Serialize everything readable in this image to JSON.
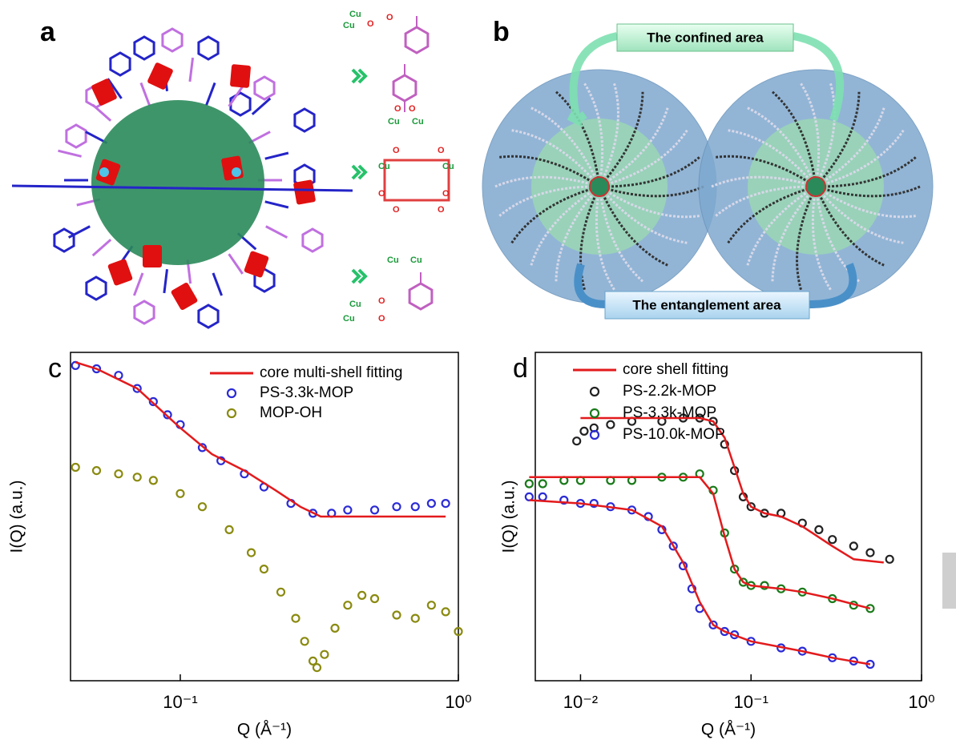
{
  "panels": {
    "a": {
      "label": "a",
      "chem_labels": [
        "Cu",
        "Cu",
        "O",
        "O",
        "O",
        "O",
        "Cu",
        "Cu",
        "O",
        "O",
        "Cu",
        "Cu",
        "O",
        "O",
        "O",
        "O",
        "Cu",
        "Cu",
        "Cu",
        "Cu",
        "O",
        "O"
      ]
    },
    "b": {
      "label": "b",
      "confined": "The confined area",
      "entanglement": "The entanglement area"
    }
  },
  "chart_data": [
    {
      "type": "scatter",
      "label": "c",
      "x_label": "Q (Å⁻¹)",
      "y_label": "I(Q) (a.u.)",
      "log_x": true,
      "xlim": [
        0.0403,
        1.0
      ],
      "ylim": [
        0,
        100
      ],
      "xticks": [
        {
          "value": 0.1,
          "label": "10⁻¹"
        },
        {
          "value": 1,
          "label": "10⁰"
        }
      ],
      "legend": "upper right",
      "fit": {
        "name": "core multi-shell fitting",
        "color": "#e31a1c",
        "lines": [
          {
            "x": [
              0.042,
              0.05,
              0.07,
              0.1,
              0.13,
              0.17,
              0.22,
              0.27,
              0.32,
              0.4,
              0.6,
              0.9
            ],
            "values": [
              97,
              95,
              89,
              77,
              69,
              64,
              58,
              53,
              50,
              50,
              50,
              50
            ]
          }
        ]
      },
      "series": [
        {
          "name": "PS-3.3k-MOP",
          "color": "#2b2bd6",
          "x": [
            0.042,
            0.05,
            0.06,
            0.07,
            0.08,
            0.09,
            0.1,
            0.12,
            0.14,
            0.17,
            0.2,
            0.25,
            0.3,
            0.35,
            0.4,
            0.5,
            0.6,
            0.7,
            0.8,
            0.9
          ],
          "values": [
            96,
            95,
            93,
            89,
            85,
            81,
            78,
            71,
            67,
            63,
            59,
            54,
            51,
            51,
            52,
            52,
            53,
            53,
            54,
            54
          ]
        },
        {
          "name": "MOP-OH",
          "color": "#8a8a10",
          "x": [
            0.042,
            0.05,
            0.06,
            0.07,
            0.08,
            0.1,
            0.12,
            0.15,
            0.18,
            0.2,
            0.23,
            0.26,
            0.28,
            0.3,
            0.31,
            0.33,
            0.36,
            0.4,
            0.45,
            0.5,
            0.6,
            0.7,
            0.8,
            0.9,
            1.0
          ],
          "values": [
            65,
            64,
            63,
            62,
            61,
            57,
            53,
            46,
            39,
            34,
            27,
            19,
            12,
            6,
            4,
            8,
            16,
            23,
            26,
            25,
            20,
            19,
            23,
            21,
            15
          ]
        }
      ]
    },
    {
      "type": "scatter",
      "label": "d",
      "x_label": "Q (Å⁻¹)",
      "y_label": "I(Q) (a.u.)",
      "log_x": true,
      "xlim": [
        0.00543,
        1.0
      ],
      "ylim": [
        0,
        100
      ],
      "xticks": [
        {
          "value": 0.01,
          "label": "10⁻²"
        },
        {
          "value": 0.1,
          "label": "10⁻¹"
        },
        {
          "value": 1,
          "label": "10⁰"
        }
      ],
      "legend": "upper right",
      "fit": {
        "name": "core shell fitting",
        "color": "#e31a1c",
        "lines": [
          {
            "x": [
              0.01,
              0.03,
              0.05,
              0.06,
              0.07,
              0.08,
              0.09,
              0.1,
              0.12,
              0.15,
              0.2,
              0.3,
              0.4,
              0.6
            ],
            "values": [
              80,
              80,
              80,
              79,
              74,
              65,
              57,
              53,
              51,
              50,
              47,
              41,
              37,
              36
            ]
          },
          {
            "x": [
              0.005,
              0.02,
              0.04,
              0.05,
              0.06,
              0.07,
              0.08,
              0.09,
              0.1,
              0.15,
              0.2,
              0.3,
              0.5
            ],
            "values": [
              62,
              62,
              62,
              62,
              57,
              44,
              34,
              30,
              29,
              28,
              27,
              25,
              22
            ]
          },
          {
            "x": [
              0.005,
              0.01,
              0.02,
              0.03,
              0.04,
              0.05,
              0.06,
              0.07,
              0.1,
              0.2,
              0.3,
              0.5
            ],
            "values": [
              55,
              54,
              52,
              47,
              36,
              24,
              17,
              15,
              12,
              9,
              7,
              5
            ]
          }
        ]
      },
      "series": [
        {
          "name": "PS-2.2k-MOP",
          "color": "#222222",
          "x": [
            0.0095,
            0.0105,
            0.012,
            0.015,
            0.02,
            0.03,
            0.04,
            0.05,
            0.06,
            0.07,
            0.08,
            0.09,
            0.1,
            0.12,
            0.15,
            0.2,
            0.25,
            0.3,
            0.4,
            0.5,
            0.65
          ],
          "values": [
            73,
            76,
            77,
            78,
            79,
            79,
            80,
            80,
            79,
            72,
            64,
            56,
            53,
            51,
            51,
            48,
            46,
            43,
            41,
            39,
            37
          ]
        },
        {
          "name": "PS-3.3k-MOP",
          "color": "#1a7a1a",
          "x": [
            0.005,
            0.006,
            0.008,
            0.01,
            0.015,
            0.02,
            0.03,
            0.04,
            0.05,
            0.06,
            0.07,
            0.08,
            0.09,
            0.1,
            0.12,
            0.15,
            0.2,
            0.3,
            0.4,
            0.5
          ],
          "values": [
            60,
            60,
            61,
            61,
            61,
            61,
            62,
            62,
            63,
            58,
            45,
            34,
            30,
            29,
            29,
            28,
            27,
            25,
            23,
            22
          ]
        },
        {
          "name": "PS-10.0k-MOP",
          "color": "#2b2bd6",
          "x": [
            0.005,
            0.006,
            0.008,
            0.01,
            0.012,
            0.015,
            0.02,
            0.025,
            0.03,
            0.035,
            0.04,
            0.045,
            0.05,
            0.06,
            0.07,
            0.08,
            0.1,
            0.15,
            0.2,
            0.3,
            0.4,
            0.5
          ],
          "values": [
            56,
            56,
            55,
            54,
            54,
            53,
            52,
            50,
            46,
            41,
            35,
            28,
            22,
            17,
            15,
            14,
            12,
            10,
            9,
            7,
            6,
            5
          ]
        }
      ]
    }
  ]
}
